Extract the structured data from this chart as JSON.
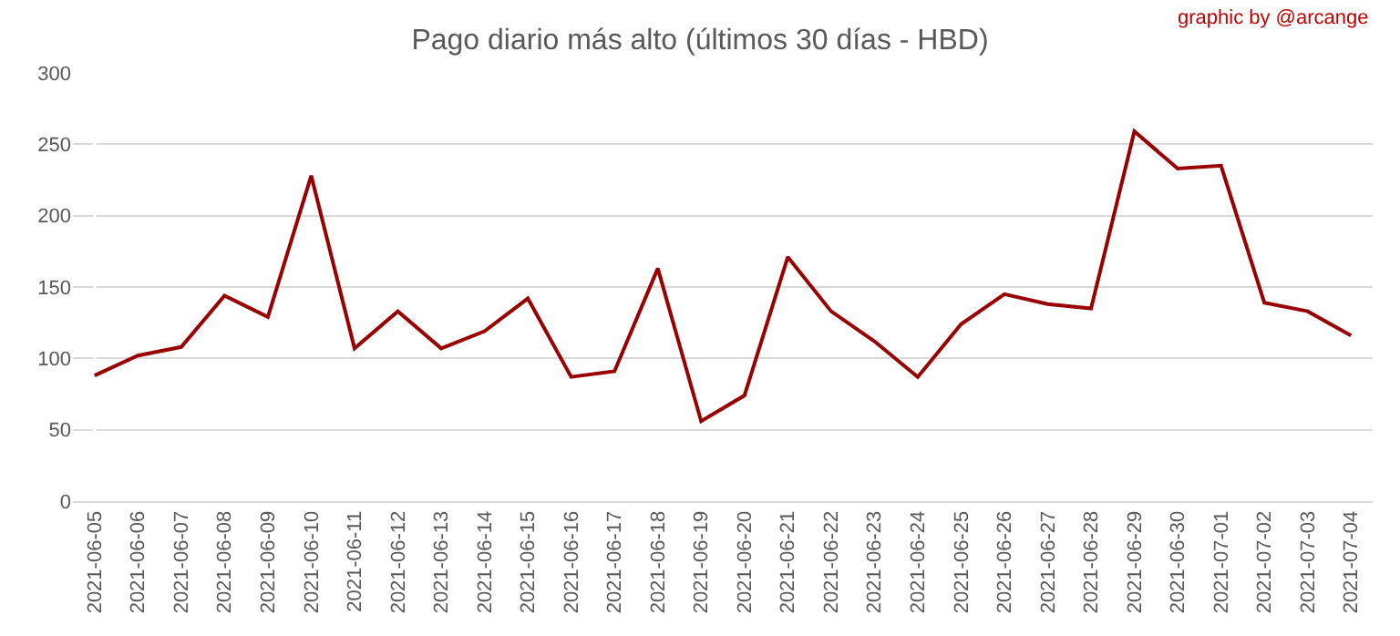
{
  "chart_data": {
    "type": "line",
    "title": "Pago diario más alto (últimos 30 días - HBD)",
    "annotations": [
      "graphic by @arcange"
    ],
    "categories": [
      "2021-06-05",
      "2021-06-06",
      "2021-06-07",
      "2021-06-08",
      "2021-06-09",
      "2021-06-10",
      "2021-06-11",
      "2021-06-12",
      "2021-06-13",
      "2021-06-14",
      "2021-06-15",
      "2021-06-16",
      "2021-06-17",
      "2021-06-18",
      "2021-06-19",
      "2021-06-20",
      "2021-06-21",
      "2021-06-22",
      "2021-06-23",
      "2021-06-24",
      "2021-06-25",
      "2021-06-26",
      "2021-06-27",
      "2021-06-28",
      "2021-06-29",
      "2021-06-30",
      "2021-07-01",
      "2021-07-02",
      "2021-07-03",
      "2021-07-04"
    ],
    "series": [
      {
        "color": "#990000",
        "values": [
          88,
          102,
          108,
          144,
          129,
          228,
          107,
          133,
          107,
          119,
          142,
          87,
          91,
          163,
          56,
          74,
          171,
          133,
          112,
          87,
          124,
          145,
          138,
          135,
          259,
          233,
          235,
          139,
          133,
          116
        ]
      }
    ],
    "ylim": [
      0,
      300
    ],
    "yticks": [
      0,
      50,
      100,
      150,
      200,
      250,
      300
    ],
    "grid": "y",
    "legend": false,
    "marker": "none",
    "line_style": "solid"
  }
}
